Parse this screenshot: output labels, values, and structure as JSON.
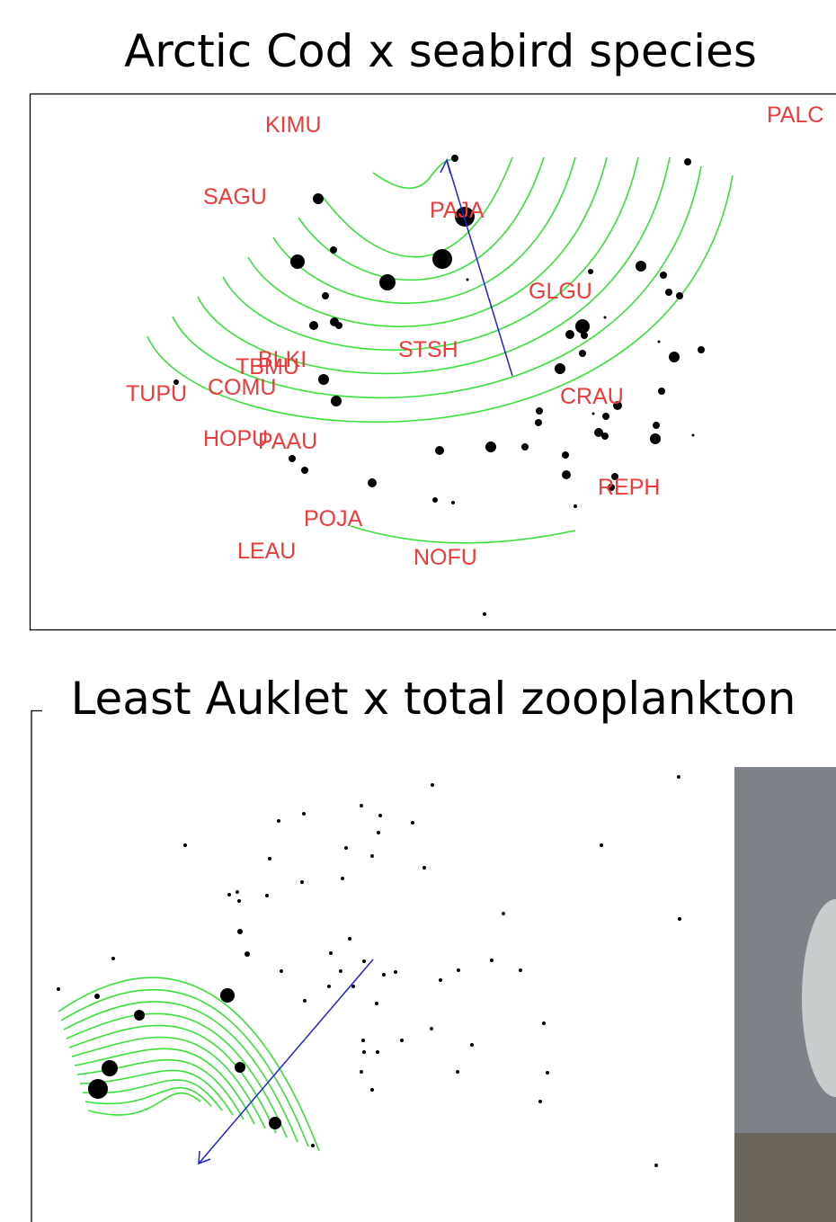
{
  "slides": [
    {
      "title": "Arctic Cod x seabird species",
      "labels": [
        "KIMU",
        "PALC",
        "SAGU",
        "PAJA",
        "GLGU",
        "STSH",
        "BLKI",
        "TBMU",
        "TUPU",
        "COMU",
        "CRAU",
        "HOPU",
        "PAAU",
        "REPH",
        "POJA",
        "LEAU",
        "NOFU"
      ]
    },
    {
      "title": "Least Auklet x total zooplankton"
    }
  ]
}
